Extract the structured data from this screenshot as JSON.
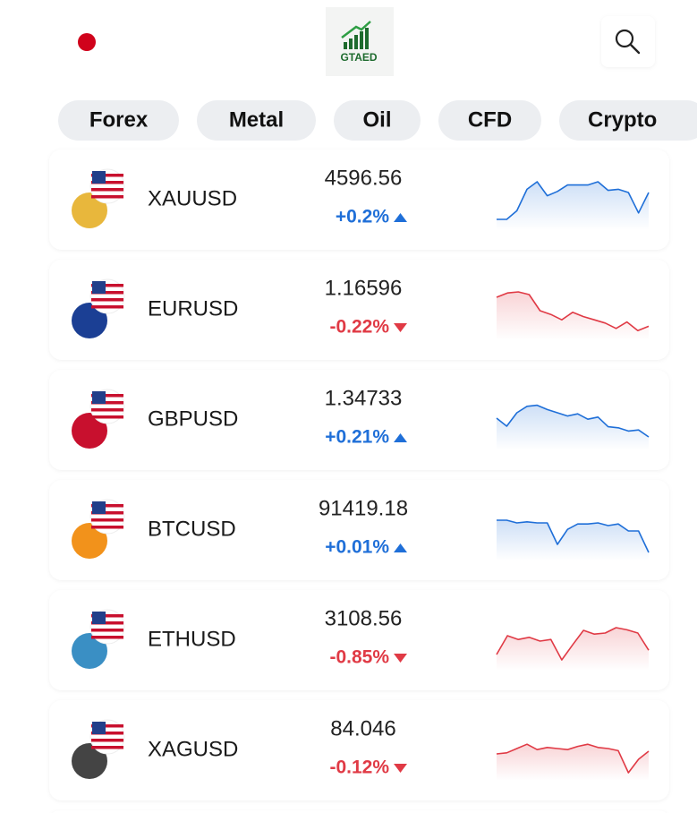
{
  "header": {
    "logo": "GTAED"
  },
  "tabs": [
    "Forex",
    "Metal",
    "Oil",
    "CFD",
    "Crypto"
  ],
  "spark_ylim": [
    0,
    100
  ],
  "rows": [
    {
      "symbol": "XAUUSD",
      "price": "4596.56",
      "change": "+0.2%",
      "color": "#1f6fd8",
      "spark": [
        20,
        20,
        36,
        76,
        90,
        64,
        72,
        84,
        84,
        84,
        90,
        74,
        76,
        70,
        32,
        70
      ]
    },
    {
      "symbol": "EURUSD",
      "price": "1.16596",
      "change": "-0.22%",
      "color": "#e03a45",
      "spark": [
        80,
        88,
        90,
        85,
        55,
        48,
        38,
        52,
        44,
        38,
        32,
        22,
        34,
        18,
        26
      ]
    },
    {
      "symbol": "GBPUSD",
      "price": "1.34733",
      "change": "+0.21%",
      "color": "#1f6fd8",
      "spark": [
        60,
        45,
        70,
        82,
        84,
        76,
        70,
        64,
        68,
        58,
        62,
        44,
        42,
        36,
        38,
        25
      ]
    },
    {
      "symbol": "BTCUSD",
      "price": "91419.18",
      "change": "+0.01%",
      "color": "#1f6fd8",
      "spark": [
        75,
        75,
        70,
        72,
        70,
        70,
        30,
        58,
        68,
        68,
        70,
        65,
        68,
        55,
        55,
        15
      ]
    },
    {
      "symbol": "ETHUSD",
      "price": "3108.56",
      "change": "-0.85%",
      "color": "#e03a45",
      "spark": [
        30,
        65,
        58,
        62,
        55,
        58,
        20,
        48,
        75,
        68,
        70,
        80,
        76,
        70,
        38
      ]
    },
    {
      "symbol": "XAGUSD",
      "price": "84.046",
      "change": "-0.12%",
      "color": "#e03a45",
      "spark": [
        50,
        52,
        60,
        68,
        58,
        62,
        60,
        58,
        64,
        68,
        62,
        60,
        56,
        15,
        40,
        55
      ]
    }
  ]
}
